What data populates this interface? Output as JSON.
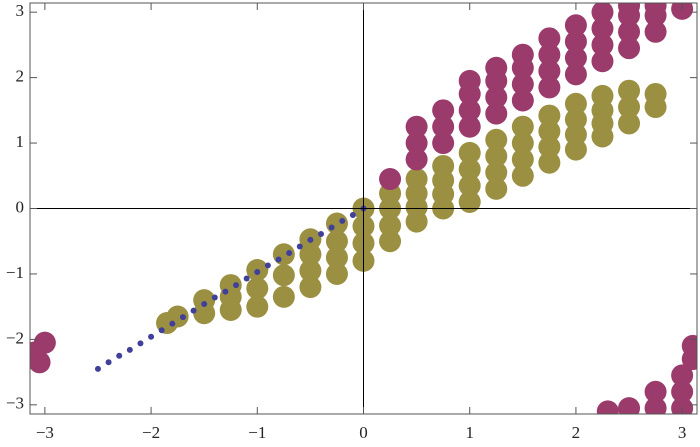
{
  "chart_data": {
    "type": "scatter",
    "xlim": [
      -3.14,
      3.14
    ],
    "ylim": [
      -3.14,
      3.14
    ],
    "xticks": [
      {
        "value": -3,
        "label": "−3"
      },
      {
        "value": -2,
        "label": "−2"
      },
      {
        "value": -1,
        "label": "−1"
      },
      0,
      1,
      2,
      3
    ],
    "yticks": [
      {
        "value": -3,
        "label": "−3"
      },
      {
        "value": -2,
        "label": "−2"
      },
      {
        "value": -1,
        "label": "−1"
      },
      0,
      1,
      2,
      3
    ],
    "series": [
      {
        "color": "#9b9042",
        "x": [
          -1.85,
          -1.75,
          -1.5,
          -1.5,
          -1.25,
          -1.25,
          -1.25,
          -1,
          -1,
          -1,
          -0.75,
          -0.75,
          -0.75,
          -0.5,
          -0.5,
          -0.5,
          -0.5,
          -0.25,
          -0.25,
          -0.25,
          -0.25,
          0,
          0,
          0,
          0,
          0.25,
          0.25,
          0.25,
          0.25,
          0.5,
          0.5,
          0.5,
          0.5,
          0.75,
          0.75,
          0.75,
          0.75,
          1,
          1,
          1,
          1,
          1.25,
          1.25,
          1.25,
          1.25,
          1.5,
          1.5,
          1.5,
          1.5,
          1.75,
          1.75,
          1.75,
          1.75,
          2,
          2,
          2,
          2,
          2.25,
          2.25,
          2.25,
          2.25,
          2.5,
          2.5,
          2.5,
          2.75,
          2.75
        ],
        "y": [
          -1.75,
          -1.65,
          -1.6,
          -1.4,
          -1.55,
          -1.35,
          -1.17,
          -1.5,
          -1.22,
          -0.94,
          -1.35,
          -1.02,
          -0.7,
          -1.2,
          -0.95,
          -0.7,
          -0.47,
          -1.0,
          -0.75,
          -0.5,
          -0.23,
          -0.8,
          -0.53,
          -0.27,
          0,
          -0.5,
          -0.26,
          0,
          0.23,
          -0.2,
          0.02,
          0.23,
          0.45,
          0,
          0.22,
          0.43,
          0.65,
          0.1,
          0.35,
          0.6,
          0.85,
          0.3,
          0.55,
          0.8,
          1.05,
          0.5,
          0.75,
          1.0,
          1.25,
          0.7,
          0.94,
          1.18,
          1.42,
          0.9,
          1.13,
          1.36,
          1.6,
          1.1,
          1.3,
          1.5,
          1.72,
          1.3,
          1.55,
          1.8,
          1.55,
          1.75
        ]
      },
      {
        "color": "#9a3b6c",
        "x": [
          0.25,
          0.5,
          0.5,
          0.5,
          0.75,
          0.75,
          0.75,
          1,
          1,
          1,
          1,
          1.25,
          1.25,
          1.25,
          1.25,
          1.5,
          1.5,
          1.5,
          1.5,
          1.75,
          1.75,
          1.75,
          1.75,
          2,
          2,
          2,
          2,
          2.25,
          2.25,
          2.25,
          2.25,
          2.5,
          2.5,
          2.5,
          2.5,
          2.75,
          2.75,
          2.75,
          3,
          2.3,
          2.5,
          2.75,
          2.75,
          3,
          3,
          3,
          3.1,
          3.1,
          -3.1,
          -3.0,
          -3.05
        ],
        "y": [
          0.45,
          0.75,
          1.0,
          1.25,
          1.0,
          1.25,
          1.5,
          1.25,
          1.5,
          1.75,
          1.95,
          1.45,
          1.7,
          1.95,
          2.15,
          1.65,
          1.9,
          2.15,
          2.35,
          1.85,
          2.1,
          2.35,
          2.6,
          2.05,
          2.3,
          2.55,
          2.8,
          2.25,
          2.5,
          2.75,
          3.0,
          2.45,
          2.7,
          2.95,
          3.1,
          2.7,
          2.95,
          3.1,
          3.05,
          -3.1,
          -3.05,
          -3.05,
          -2.8,
          -3.05,
          -2.8,
          -2.55,
          -2.3,
          -2.1,
          -2.2,
          -2.05,
          -2.35
        ]
      },
      {
        "color": "#40409a",
        "x": [
          -2.5,
          -2.4,
          -2.3,
          -2.2,
          -2.1,
          -2.0,
          -1.9,
          -1.8,
          -1.7,
          -1.6,
          -1.5,
          -1.4,
          -1.3,
          -1.2,
          -1.1,
          -1.0,
          -0.9,
          -0.8,
          -0.7,
          -0.6,
          -0.5,
          -0.4,
          -0.3,
          -0.2,
          -0.1,
          0
        ],
        "y": [
          -2.45,
          -2.35,
          -2.25,
          -2.16,
          -2.06,
          -1.96,
          -1.86,
          -1.76,
          -1.66,
          -1.56,
          -1.46,
          -1.36,
          -1.27,
          -1.17,
          -1.07,
          -0.97,
          -0.87,
          -0.78,
          -0.68,
          -0.58,
          -0.48,
          -0.39,
          -0.29,
          -0.19,
          -0.1,
          0
        ]
      }
    ]
  }
}
